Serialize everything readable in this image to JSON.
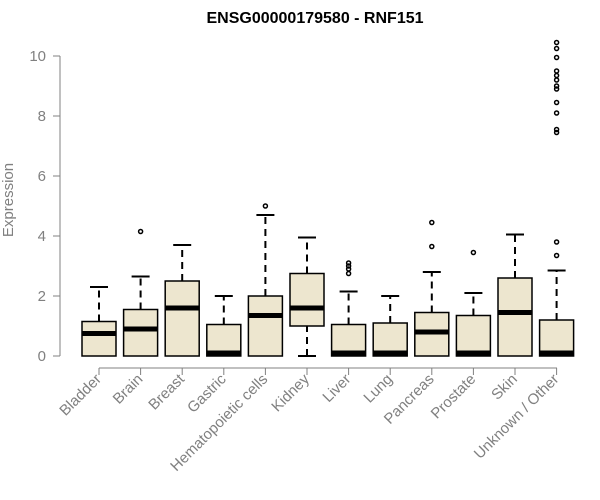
{
  "chart_data": {
    "type": "box",
    "title": "ENSG00000179580 - RNF151",
    "ylabel": "Expression",
    "xlabel": "",
    "ylim": [
      0,
      10.5
    ],
    "yticks": [
      0,
      2,
      4,
      6,
      8,
      10
    ],
    "box_fill": "#ede6cf",
    "categories": [
      "Bladder",
      "Brain",
      "Breast",
      "Gastric",
      "Hematopoietic cells",
      "Kidney",
      "Liver",
      "Lung",
      "Pancreas",
      "Prostate",
      "Skin",
      "Unknown / Other"
    ],
    "boxes": [
      {
        "whisker_low": 0,
        "q1": 0,
        "median": 0.75,
        "q3": 1.15,
        "whisker_high": 2.3,
        "outliers": []
      },
      {
        "whisker_low": 0,
        "q1": 0,
        "median": 0.9,
        "q3": 1.55,
        "whisker_high": 2.65,
        "outliers": [
          4.15
        ]
      },
      {
        "whisker_low": 0,
        "q1": 0,
        "median": 1.6,
        "q3": 2.5,
        "whisker_high": 3.7,
        "outliers": []
      },
      {
        "whisker_low": 0,
        "q1": 0,
        "median": 0.02,
        "q3": 1.05,
        "whisker_high": 2.0,
        "outliers": []
      },
      {
        "whisker_low": 0,
        "q1": 0,
        "median": 1.35,
        "q3": 2.0,
        "whisker_high": 4.7,
        "outliers": [
          5.0
        ]
      },
      {
        "whisker_low": 0,
        "q1": 1.0,
        "median": 1.6,
        "q3": 2.75,
        "whisker_high": 3.95,
        "outliers": []
      },
      {
        "whisker_low": 0,
        "q1": 0,
        "median": 0.02,
        "q3": 1.05,
        "whisker_high": 2.15,
        "outliers": [
          2.75,
          2.9,
          3.0,
          3.1
        ]
      },
      {
        "whisker_low": 0,
        "q1": 0,
        "median": 0.02,
        "q3": 1.1,
        "whisker_high": 2.0,
        "outliers": []
      },
      {
        "whisker_low": 0,
        "q1": 0,
        "median": 0.8,
        "q3": 1.45,
        "whisker_high": 2.8,
        "outliers": [
          3.65,
          4.45
        ]
      },
      {
        "whisker_low": 0,
        "q1": 0,
        "median": 0.02,
        "q3": 1.35,
        "whisker_high": 2.1,
        "outliers": [
          3.45
        ]
      },
      {
        "whisker_low": 0,
        "q1": 0,
        "median": 1.45,
        "q3": 2.6,
        "whisker_high": 4.05,
        "outliers": []
      },
      {
        "whisker_low": 0,
        "q1": 0,
        "median": 0.02,
        "q3": 1.2,
        "whisker_high": 2.85,
        "outliers": [
          3.35,
          3.8,
          7.45,
          7.55,
          8.1,
          8.45,
          8.9,
          9.0,
          9.2,
          9.35,
          9.5,
          9.95,
          10.25,
          10.45
        ]
      }
    ]
  }
}
